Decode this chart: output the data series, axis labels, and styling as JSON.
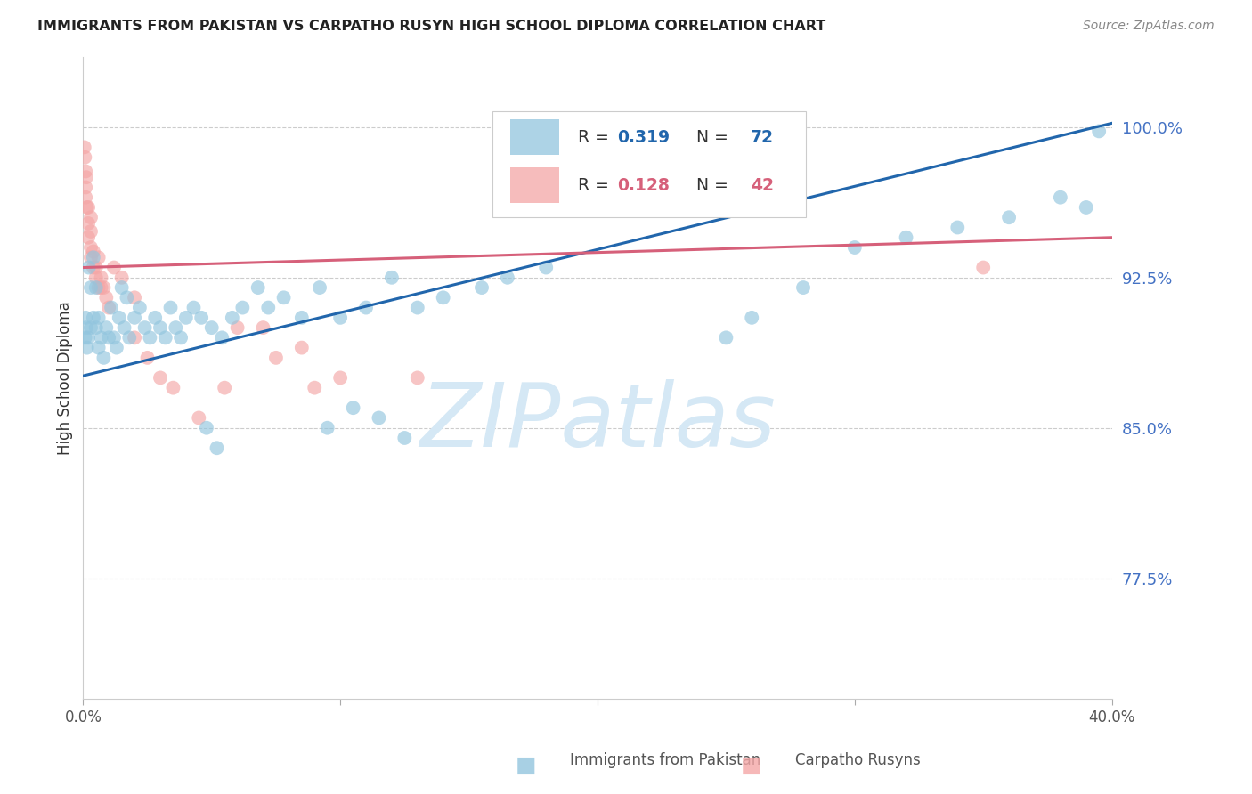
{
  "title": "IMMIGRANTS FROM PAKISTAN VS CARPATHO RUSYN HIGH SCHOOL DIPLOMA CORRELATION CHART",
  "source": "Source: ZipAtlas.com",
  "ylabel": "High School Diploma",
  "xmin": 0.0,
  "xmax": 0.4,
  "ymin": 0.715,
  "ymax": 1.035,
  "blue_R": 0.319,
  "blue_N": 72,
  "pink_R": 0.128,
  "pink_N": 42,
  "legend_label_blue": "Immigrants from Pakistan",
  "legend_label_pink": "Carpatho Rusyns",
  "blue_color": "#92c5de",
  "pink_color": "#f4a6a6",
  "blue_line_color": "#2166ac",
  "pink_line_color": "#d6607a",
  "blue_trend_x": [
    0.0,
    0.4
  ],
  "blue_trend_y": [
    0.876,
    1.002
  ],
  "pink_trend_x": [
    0.0,
    0.4
  ],
  "pink_trend_y": [
    0.93,
    0.945
  ],
  "ytick_positions": [
    0.775,
    0.85,
    0.925,
    1.0
  ],
  "ytick_labels": [
    "77.5%",
    "85.0%",
    "92.5%",
    "100.0%"
  ],
  "ytick_color": "#4472c4",
  "xtick_edge_labels": [
    "0.0%",
    "40.0%"
  ],
  "watermark_text": "ZIPatlas",
  "watermark_color": "#d5e8f5",
  "grid_color": "#cccccc",
  "bg_color": "#ffffff",
  "blue_points_x": [
    0.0008,
    0.001,
    0.0012,
    0.0015,
    0.002,
    0.0022,
    0.003,
    0.003,
    0.004,
    0.004,
    0.005,
    0.005,
    0.006,
    0.006,
    0.007,
    0.008,
    0.009,
    0.01,
    0.011,
    0.012,
    0.013,
    0.014,
    0.015,
    0.016,
    0.017,
    0.018,
    0.02,
    0.022,
    0.024,
    0.026,
    0.028,
    0.03,
    0.032,
    0.034,
    0.036,
    0.038,
    0.04,
    0.043,
    0.046,
    0.05,
    0.054,
    0.058,
    0.062,
    0.068,
    0.072,
    0.078,
    0.085,
    0.092,
    0.1,
    0.11,
    0.12,
    0.13,
    0.14,
    0.155,
    0.165,
    0.18,
    0.25,
    0.26,
    0.28,
    0.3,
    0.32,
    0.34,
    0.36,
    0.38,
    0.39,
    0.395,
    0.048,
    0.052,
    0.095,
    0.105,
    0.115,
    0.125
  ],
  "blue_points_y": [
    0.895,
    0.905,
    0.9,
    0.89,
    0.895,
    0.93,
    0.92,
    0.9,
    0.935,
    0.905,
    0.92,
    0.9,
    0.89,
    0.905,
    0.895,
    0.885,
    0.9,
    0.895,
    0.91,
    0.895,
    0.89,
    0.905,
    0.92,
    0.9,
    0.915,
    0.895,
    0.905,
    0.91,
    0.9,
    0.895,
    0.905,
    0.9,
    0.895,
    0.91,
    0.9,
    0.895,
    0.905,
    0.91,
    0.905,
    0.9,
    0.895,
    0.905,
    0.91,
    0.92,
    0.91,
    0.915,
    0.905,
    0.92,
    0.905,
    0.91,
    0.925,
    0.91,
    0.915,
    0.92,
    0.925,
    0.93,
    0.895,
    0.905,
    0.92,
    0.94,
    0.945,
    0.95,
    0.955,
    0.965,
    0.96,
    0.998,
    0.85,
    0.84,
    0.85,
    0.86,
    0.855,
    0.845
  ],
  "pink_points_x": [
    0.0005,
    0.0007,
    0.001,
    0.001,
    0.001,
    0.0012,
    0.0015,
    0.002,
    0.002,
    0.002,
    0.003,
    0.003,
    0.003,
    0.003,
    0.004,
    0.004,
    0.005,
    0.005,
    0.006,
    0.006,
    0.007,
    0.007,
    0.008,
    0.009,
    0.01,
    0.012,
    0.015,
    0.02,
    0.03,
    0.035,
    0.045,
    0.055,
    0.07,
    0.085,
    0.1,
    0.13,
    0.02,
    0.025,
    0.06,
    0.075,
    0.09,
    0.35
  ],
  "pink_points_y": [
    0.99,
    0.985,
    0.978,
    0.97,
    0.965,
    0.975,
    0.96,
    0.96,
    0.952,
    0.945,
    0.955,
    0.948,
    0.94,
    0.935,
    0.938,
    0.93,
    0.93,
    0.925,
    0.935,
    0.92,
    0.925,
    0.92,
    0.92,
    0.915,
    0.91,
    0.93,
    0.925,
    0.915,
    0.875,
    0.87,
    0.855,
    0.87,
    0.9,
    0.89,
    0.875,
    0.875,
    0.895,
    0.885,
    0.9,
    0.885,
    0.87,
    0.93
  ]
}
